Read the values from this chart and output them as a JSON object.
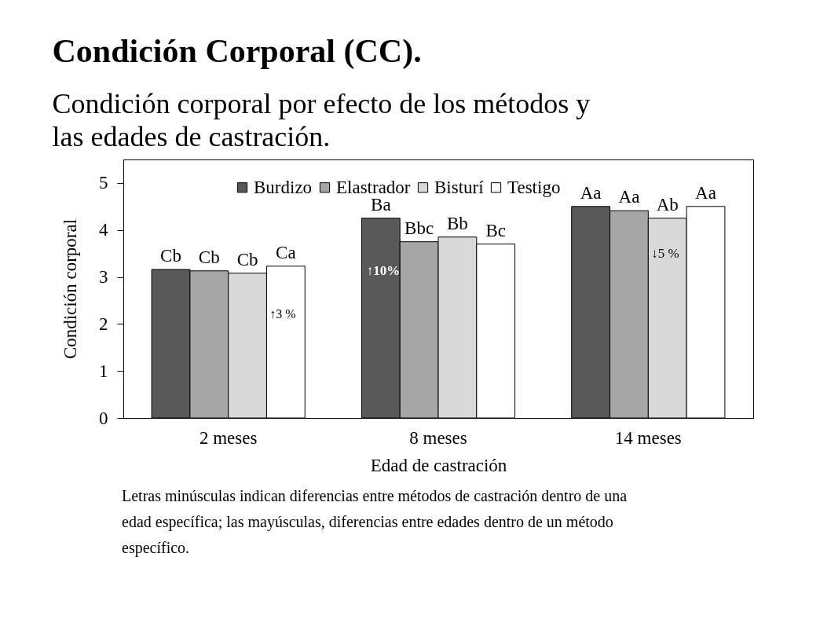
{
  "chart_data": {
    "type": "bar",
    "title": "Condición Corporal (CC).",
    "subtitle": "Condición corporal por efecto de los métodos y las edades de castración.",
    "xlabel": "Edad de castración",
    "ylabel": "Condición corporal",
    "categories": [
      "2 meses",
      "8 meses",
      "14 meses"
    ],
    "series": [
      {
        "name": "Burdizo",
        "color": "#595959",
        "values": [
          3.16,
          4.25,
          4.5
        ],
        "value_labels": [
          "Cb",
          "Ba",
          "Aa"
        ]
      },
      {
        "name": "Elastrador",
        "color": "#a6a6a6",
        "values": [
          3.13,
          3.75,
          4.41
        ],
        "value_labels": [
          "Cb",
          "Bbc",
          "Aa"
        ]
      },
      {
        "name": "Bisturí",
        "color": "#d9d9d9",
        "values": [
          3.08,
          3.85,
          4.25
        ],
        "value_labels": [
          "Cb",
          "Bb",
          "Ab"
        ]
      },
      {
        "name": "Testigo",
        "color": "#ffffff",
        "values": [
          3.23,
          3.7,
          4.5
        ],
        "value_labels": [
          "Ca",
          "Bc",
          "Aa"
        ]
      }
    ],
    "ylim": [
      0,
      5.5
    ],
    "yticks": [
      0,
      1,
      2,
      3,
      4,
      5
    ],
    "legend": "top",
    "annotations": [
      "↑3 %",
      "↑10%",
      "↓5 %",
      "Letras minúsculas indican diferencias entre métodos de castración dentro de una edad específica; las mayúsculas, diferencias entre edades dentro de un método específico."
    ]
  }
}
